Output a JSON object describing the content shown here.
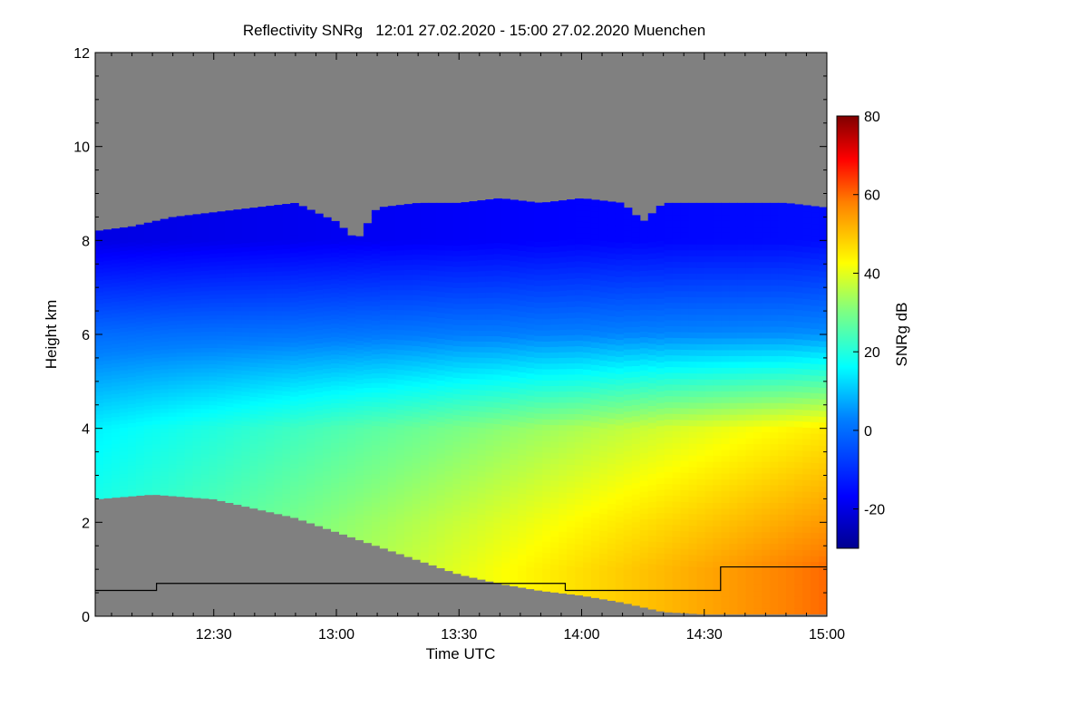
{
  "chart_data": {
    "type": "heatmap",
    "title": "Reflectivity SNRg   12:01 27.02.2020 - 15:00 27.02.2020 Muenchen",
    "xlabel": "Time UTC",
    "ylabel": "Height km",
    "x_range_minutes_utc": [
      721,
      900
    ],
    "xlim": [
      "12:01",
      "15:00"
    ],
    "ylim": [
      0,
      12
    ],
    "x_ticks": [
      {
        "label": "12:30",
        "minute": 750
      },
      {
        "label": "13:00",
        "minute": 780
      },
      {
        "label": "13:30",
        "minute": 810
      },
      {
        "label": "14:00",
        "minute": 840
      },
      {
        "label": "14:30",
        "minute": 870
      },
      {
        "label": "15:00",
        "minute": 900
      }
    ],
    "y_ticks": [
      0,
      2,
      4,
      6,
      8,
      10,
      12
    ],
    "colorbar": {
      "label": "SNRg dB",
      "range": [
        -30,
        80
      ],
      "ticks": [
        -20,
        0,
        20,
        40,
        60,
        80
      ]
    },
    "missing_color": "#808080",
    "echo_top_km": [
      [
        721,
        8.2
      ],
      [
        730,
        8.3
      ],
      [
        740,
        8.5
      ],
      [
        750,
        8.6
      ],
      [
        760,
        8.7
      ],
      [
        770,
        8.8
      ],
      [
        780,
        8.4
      ],
      [
        785,
        8.0
      ],
      [
        790,
        8.7
      ],
      [
        800,
        8.8
      ],
      [
        810,
        8.8
      ],
      [
        820,
        8.9
      ],
      [
        830,
        8.8
      ],
      [
        840,
        8.9
      ],
      [
        850,
        8.8
      ],
      [
        855,
        8.4
      ],
      [
        860,
        8.8
      ],
      [
        870,
        8.8
      ],
      [
        880,
        8.8
      ],
      [
        890,
        8.8
      ],
      [
        900,
        8.7
      ]
    ],
    "echo_base_km": [
      [
        721,
        2.5
      ],
      [
        735,
        2.6
      ],
      [
        750,
        2.5
      ],
      [
        760,
        2.3
      ],
      [
        770,
        2.1
      ],
      [
        780,
        1.8
      ],
      [
        790,
        1.5
      ],
      [
        800,
        1.2
      ],
      [
        810,
        0.9
      ],
      [
        820,
        0.7
      ],
      [
        830,
        0.55
      ],
      [
        840,
        0.45
      ],
      [
        850,
        0.3
      ],
      [
        860,
        0.1
      ],
      [
        870,
        0.05
      ],
      [
        900,
        0.05
      ]
    ],
    "snr_by_height_km": [
      {
        "height": 8.0,
        "start_db": -20,
        "end_db": -15
      },
      {
        "height": 6.0,
        "start_db": 0,
        "end_db": 5
      },
      {
        "height": 4.0,
        "start_db": 15,
        "end_db": 45
      },
      {
        "height": 2.0,
        "start_db": 20,
        "end_db": 55
      },
      {
        "height": 1.0,
        "start_db": 20,
        "end_db": 60
      }
    ],
    "black_step_line_km": [
      [
        721,
        0.55
      ],
      [
        736,
        0.55
      ],
      [
        736,
        0.7
      ],
      [
        836,
        0.7
      ],
      [
        836,
        0.55
      ],
      [
        874,
        0.55
      ],
      [
        874,
        1.05
      ],
      [
        900,
        1.05
      ]
    ]
  }
}
